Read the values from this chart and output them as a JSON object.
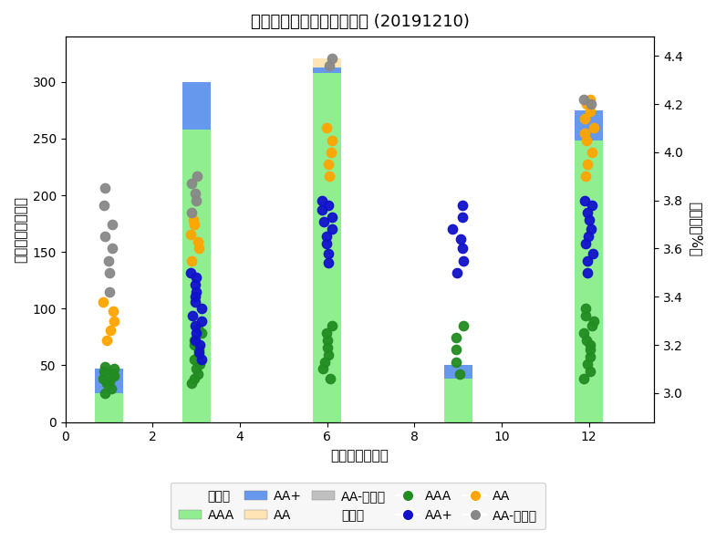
{
  "title": "一级市场同业存单发行情况 (20191210)",
  "xlabel": "发行期限（月）",
  "ylabel_left": "发行规模（亿元）",
  "ylabel_right": "收益率（%）",
  "bar_positions": [
    1,
    3,
    6,
    9,
    12
  ],
  "bar_width": 0.65,
  "bars": {
    "AAA": [
      25,
      258,
      308,
      38,
      248
    ],
    "AA+": [
      22,
      42,
      5,
      12,
      27
    ],
    "AA": [
      0,
      0,
      8,
      0,
      0
    ],
    "AA-": [
      0,
      0,
      0,
      0,
      0
    ]
  },
  "bar_colors": {
    "AAA": "#90EE90",
    "AA+": "#6699EE",
    "AA": "#FFE4B5",
    "AA-": "#C0C0C0"
  },
  "dot_colors": {
    "AAA": "#228B22",
    "AA+": "#1111CC",
    "AA": "#FFA500",
    "AA-": "#888888"
  },
  "dots": {
    "1": {
      "AAA": [
        3.0,
        3.02,
        3.04,
        3.05,
        3.06,
        3.07,
        3.08,
        3.09,
        3.1,
        3.11
      ],
      "AA+": [],
      "AA": [
        3.22,
        3.26,
        3.3,
        3.34,
        3.38
      ],
      "AA-": [
        3.42,
        3.5,
        3.55,
        3.6,
        3.65,
        3.7,
        3.78,
        3.85
      ]
    },
    "3": {
      "AAA": [
        3.04,
        3.06,
        3.08,
        3.1,
        3.12,
        3.14,
        3.16,
        3.18,
        3.2,
        3.22,
        3.25,
        3.27
      ],
      "AA+": [
        3.14,
        3.17,
        3.2,
        3.22,
        3.25,
        3.28,
        3.3,
        3.32,
        3.35,
        3.38,
        3.4,
        3.42,
        3.45,
        3.48,
        3.5
      ],
      "AA": [
        3.55,
        3.6,
        3.63,
        3.66,
        3.7,
        3.72
      ],
      "AA-": [
        3.75,
        3.8,
        3.83,
        3.87,
        3.9
      ]
    },
    "6": {
      "AAA": [
        3.06,
        3.1,
        3.13,
        3.16,
        3.19,
        3.22,
        3.25,
        3.28
      ],
      "AA+": [
        3.54,
        3.58,
        3.62,
        3.65,
        3.68,
        3.71,
        3.73,
        3.76,
        3.78,
        3.8
      ],
      "AA": [
        3.9,
        3.95,
        4.0,
        4.05,
        4.1
      ],
      "AA-": [
        4.36,
        4.39
      ]
    },
    "9": {
      "AAA": [
        3.08,
        3.13,
        3.18,
        3.23,
        3.28
      ],
      "AA+": [
        3.5,
        3.55,
        3.6,
        3.64,
        3.68,
        3.73,
        3.78
      ],
      "AA": [],
      "AA-": []
    },
    "12": {
      "AAA": [
        3.06,
        3.09,
        3.12,
        3.15,
        3.18,
        3.2,
        3.22,
        3.25,
        3.28,
        3.3,
        3.32,
        3.35
      ],
      "AA+": [
        3.5,
        3.55,
        3.58,
        3.62,
        3.65,
        3.68,
        3.72,
        3.75,
        3.78,
        3.8
      ],
      "AA": [
        3.9,
        3.95,
        4.0,
        4.05,
        4.08,
        4.1,
        4.14,
        4.17,
        4.2,
        4.22
      ],
      "AA-": [
        4.2,
        4.22
      ]
    }
  },
  "ylim_left": [
    0,
    340
  ],
  "ylim_right": [
    2.88,
    4.48
  ],
  "xticks": [
    0,
    2,
    4,
    6,
    8,
    10,
    12
  ],
  "yticks_left": [
    0,
    50,
    100,
    150,
    200,
    250,
    300
  ],
  "yticks_right": [
    3.0,
    3.2,
    3.4,
    3.6,
    3.8,
    4.0,
    4.2,
    4.4
  ],
  "xlim": [
    0,
    13.5
  ],
  "legend_row1_labels": [
    "左轴：",
    "AAA",
    "AA+",
    "AA",
    "AA-及以下"
  ],
  "legend_row2_labels": [
    "右轴：",
    "AAA",
    "AA+",
    "AA",
    "AA-及以下"
  ]
}
